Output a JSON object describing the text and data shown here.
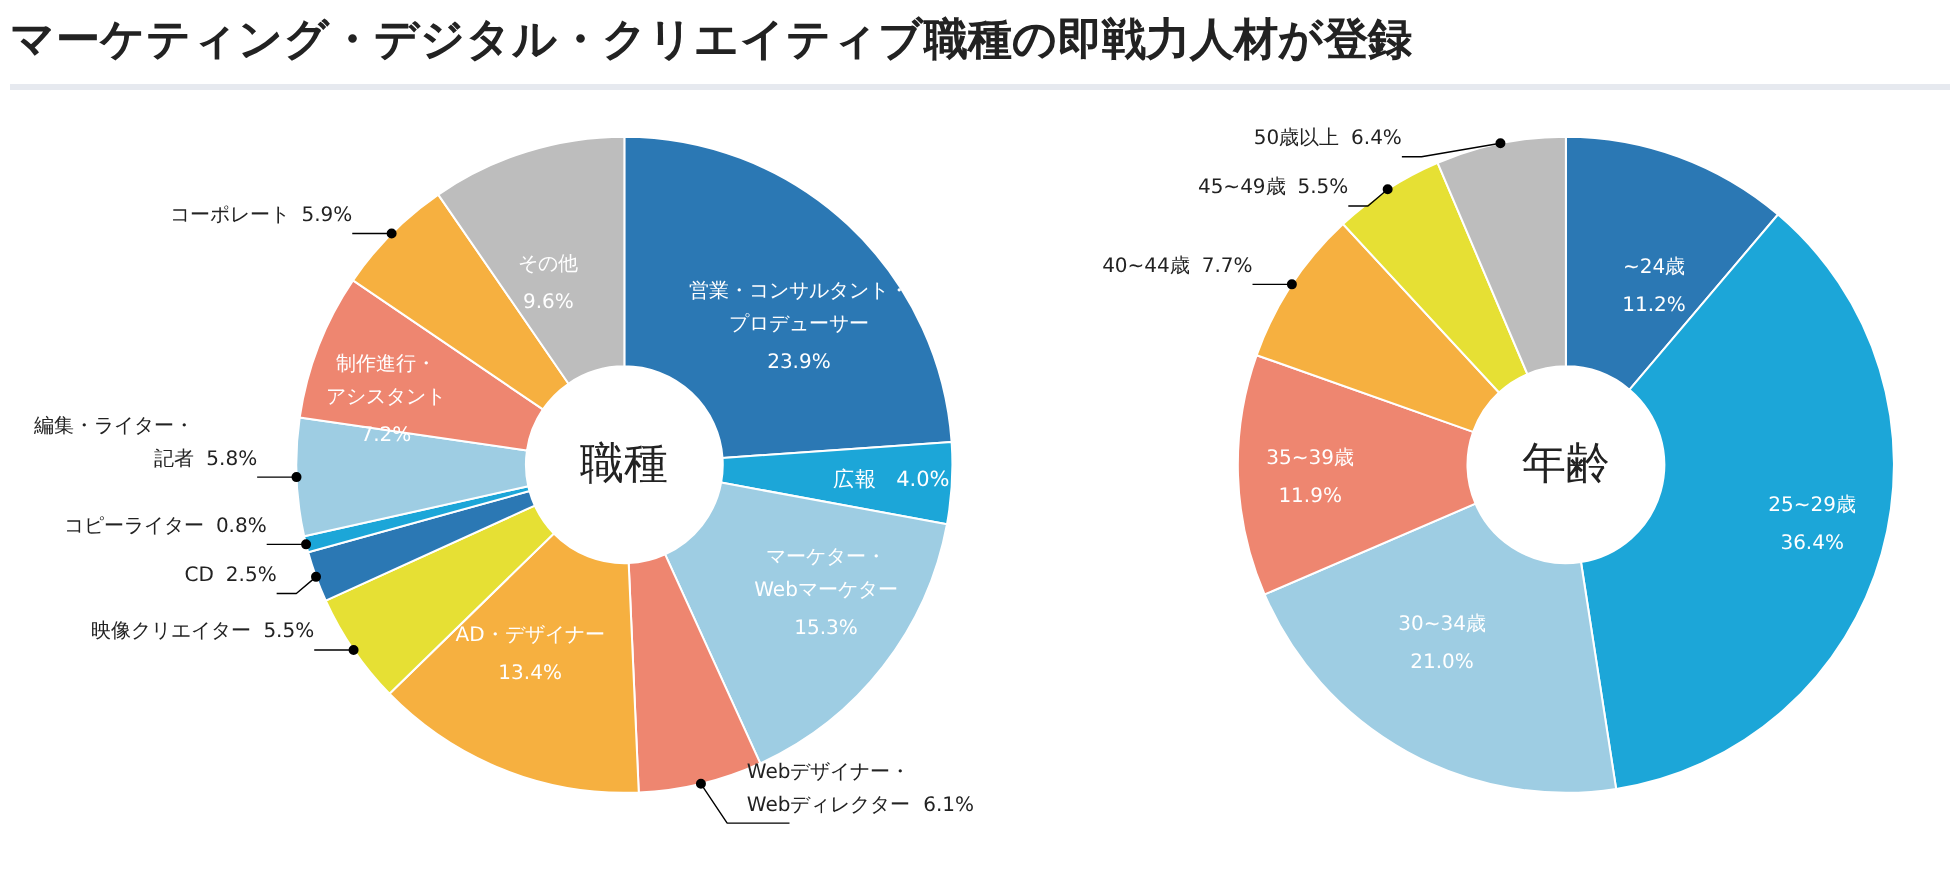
{
  "chart_data": [
    {
      "type": "donut",
      "title": "マーケティング・デジタル・クリエイティブ職種の即戦力人材が登録",
      "annotations": [
        "職種"
      ],
      "data_labels": true,
      "categories": [
        "営業・コンサルタント・プロデューサー",
        "広報",
        "マーケター・Webマーケター",
        "Webデザイナー・Webディレクター",
        "AD・デザイナー",
        "映像クリエイター",
        "CD",
        "コピーライター",
        "編集・ライター・記者",
        "制作進行・アシスタント",
        "コーポレート",
        "その他"
      ],
      "values": [
        23.9,
        4.0,
        15.3,
        6.1,
        13.4,
        5.5,
        2.5,
        0.8,
        5.8,
        7.2,
        5.9,
        9.6
      ],
      "value_labels": [
        "23.9%",
        "4.0%",
        "15.3%",
        "6.1%",
        "13.4%",
        "5.5%",
        "2.5%",
        "0.8%",
        "5.8%",
        "7.2%",
        "5.9%",
        "9.6%"
      ],
      "colors": [
        "#2b78b4",
        "#1ca6d8",
        "#9ecde3",
        "#ee8670",
        "#f6b040",
        "#e6e034",
        "#2b78b4",
        "#1ca6d8",
        "#9ecde3",
        "#ee8670",
        "#f6b040",
        "#bdbdbd"
      ]
    },
    {
      "type": "donut",
      "annotations": [
        "年齢"
      ],
      "data_labels": true,
      "categories": [
        "~24歳",
        "25~29歳",
        "30~34歳",
        "35~39歳",
        "40~44歳",
        "45~49歳",
        "50歳以上"
      ],
      "values": [
        11.2,
        36.4,
        21.0,
        11.9,
        7.7,
        5.5,
        6.4
      ],
      "value_labels": [
        "11.2%",
        "36.4%",
        "21.0%",
        "11.9%",
        "7.7%",
        "5.5%",
        "6.4%"
      ],
      "colors": [
        "#2b78b4",
        "#1ca6d8",
        "#9ecde3",
        "#ee8670",
        "#f6b040",
        "#e6e034",
        "#bdbdbd"
      ]
    }
  ]
}
